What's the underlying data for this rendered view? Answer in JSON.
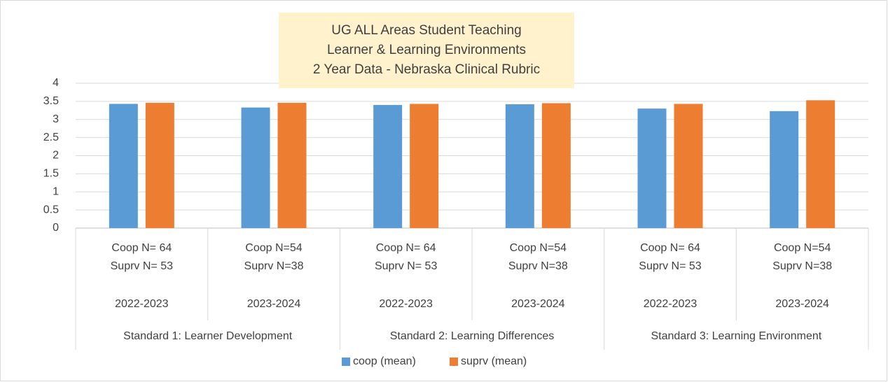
{
  "chart_data": {
    "type": "bar",
    "title": [
      "UG ALL Areas Student Teaching",
      "Learner & Learning Environments",
      "2 Year Data - Nebraska Clinical Rubric"
    ],
    "categories": [
      [
        "Coop N= 64",
        "Suprv N= 53"
      ],
      [
        "Coop N=54",
        "Suprv N=38"
      ],
      [
        "Coop N= 64",
        "Suprv N= 53"
      ],
      [
        "Coop N=54",
        "Suprv N=38"
      ],
      [
        "Coop N= 64",
        "Suprv N= 53"
      ],
      [
        "Coop N=54",
        "Suprv N=38"
      ]
    ],
    "years": [
      "2022-2023",
      "2023-2024",
      "2022-2023",
      "2023-2024",
      "2022-2023",
      "2023-2024"
    ],
    "groups": [
      "Standard 1: Learner Development",
      "Standard 2: Learning Differences",
      "Standard 3: Learning Environment"
    ],
    "series": [
      {
        "name": "coop (mean)",
        "color": "#5b9bd5",
        "values": [
          3.43,
          3.33,
          3.4,
          3.42,
          3.3,
          3.23
        ]
      },
      {
        "name": "suprv (mean)",
        "color": "#ed7d31",
        "values": [
          3.46,
          3.46,
          3.43,
          3.45,
          3.43,
          3.53
        ]
      }
    ],
    "ylim": [
      0,
      4
    ],
    "yticks": [
      0,
      0.5,
      1,
      1.5,
      2,
      2.5,
      3,
      3.5,
      4
    ],
    "grid": true,
    "legend": "bottom"
  }
}
